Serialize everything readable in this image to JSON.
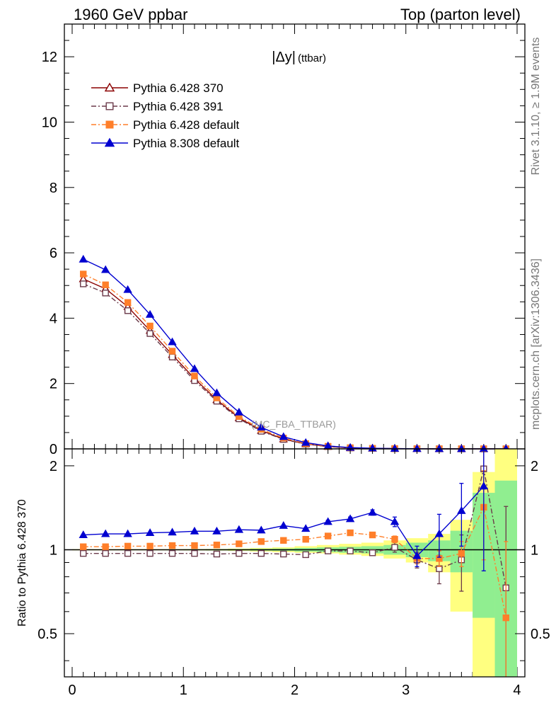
{
  "header": {
    "left": "1960 GeV ppbar",
    "right": "Top (parton level)"
  },
  "side_text": {
    "rivet": "Rivet 3.1.10, ≥ 1.9M events",
    "mcplots": "mcplots.cern.ch [arXiv:1306.3436]"
  },
  "chart_data": [
    {
      "type": "line",
      "title": "|Δy|",
      "title_suffix": "(ttbar)",
      "watermark": "(MC_FBA_TTBAR)",
      "xlim": [
        -0.07,
        4.07
      ],
      "ylim": [
        0,
        13.0
      ],
      "yticks": [
        0,
        2,
        4,
        6,
        8,
        10,
        12
      ],
      "ytick_labels": [
        "0",
        "2",
        "4",
        "6",
        "8",
        "10",
        "12"
      ],
      "x": [
        0.1,
        0.3,
        0.5,
        0.7,
        0.9,
        1.1,
        1.3,
        1.5,
        1.7,
        1.9,
        2.1,
        2.3,
        2.5,
        2.7,
        2.9,
        3.1,
        3.3,
        3.5,
        3.7,
        3.9
      ],
      "legend_position": "top-left",
      "series": [
        {
          "name": "Pythia 6.428 370",
          "color": "#8b0000",
          "marker": "open-triangle",
          "dash": "solid",
          "values": [
            5.2,
            4.9,
            4.35,
            3.62,
            2.88,
            2.15,
            1.5,
            0.95,
            0.56,
            0.3,
            0.15,
            0.07,
            0.03,
            0.015,
            0.008,
            0.004,
            0.002,
            0.001,
            0.001,
            0.001
          ]
        },
        {
          "name": "Pythia 6.428 391",
          "color": "#6b3a4a",
          "marker": "open-square",
          "dash": "dashdot",
          "values": [
            5.05,
            4.77,
            4.23,
            3.53,
            2.81,
            2.09,
            1.46,
            0.92,
            0.54,
            0.29,
            0.145,
            0.07,
            0.03,
            0.015,
            0.008,
            0.004,
            0.002,
            0.001,
            0.001,
            0.001
          ]
        },
        {
          "name": "Pythia 6.428 default",
          "color": "#ff7f2a",
          "marker": "filled-square",
          "dash": "dashdot",
          "values": [
            5.35,
            5.02,
            4.48,
            3.76,
            2.99,
            2.23,
            1.56,
            0.99,
            0.6,
            0.33,
            0.16,
            0.078,
            0.035,
            0.017,
            0.009,
            0.004,
            0.002,
            0.001,
            0.001,
            0.001
          ]
        },
        {
          "name": "Pythia 8.308 default",
          "color": "#0000d0",
          "marker": "filled-triangle",
          "dash": "solid",
          "values": [
            5.8,
            5.48,
            4.87,
            4.11,
            3.27,
            2.45,
            1.71,
            1.12,
            0.66,
            0.37,
            0.19,
            0.09,
            0.04,
            0.02,
            0.01,
            0.004,
            0.002,
            0.001,
            0.001,
            0.001
          ]
        }
      ]
    },
    {
      "type": "line",
      "ylabel": "Ratio to Pythia 6.428 370",
      "xlim": [
        -0.07,
        4.07
      ],
      "ylim": [
        0.35,
        2.3
      ],
      "yscale": "log",
      "xticks": [
        0,
        1,
        2,
        3,
        4
      ],
      "xtick_labels": [
        "0",
        "1",
        "2",
        "3",
        "4"
      ],
      "yticks": [
        0.5,
        1,
        2
      ],
      "ytick_labels": [
        "0.5",
        "1",
        "2"
      ],
      "reference_line": 1,
      "x": [
        0.1,
        0.3,
        0.5,
        0.7,
        0.9,
        1.1,
        1.3,
        1.5,
        1.7,
        1.9,
        2.1,
        2.3,
        2.5,
        2.7,
        2.9,
        3.1,
        3.3,
        3.5,
        3.7,
        3.9
      ],
      "bands": {
        "yellow_color": "#ffff80",
        "green_color": "#90ee90",
        "yellow": [
          [
            0.995,
            1.005
          ],
          [
            0.995,
            1.005
          ],
          [
            0.995,
            1.005
          ],
          [
            0.995,
            1.005
          ],
          [
            0.995,
            1.005
          ],
          [
            0.994,
            1.006
          ],
          [
            0.993,
            1.007
          ],
          [
            0.99,
            1.01
          ],
          [
            0.985,
            1.015
          ],
          [
            0.98,
            1.02
          ],
          [
            0.975,
            1.03
          ],
          [
            0.97,
            1.04
          ],
          [
            0.96,
            1.05
          ],
          [
            0.95,
            1.06
          ],
          [
            0.93,
            1.08
          ],
          [
            0.9,
            1.1
          ],
          [
            0.83,
            1.14
          ],
          [
            0.6,
            1.28
          ],
          [
            0.3,
            1.9
          ],
          [
            0.3,
            2.3
          ]
        ],
        "green": [
          [
            0.997,
            1.003
          ],
          [
            0.997,
            1.003
          ],
          [
            0.997,
            1.003
          ],
          [
            0.997,
            1.003
          ],
          [
            0.997,
            1.003
          ],
          [
            0.996,
            1.004
          ],
          [
            0.995,
            1.005
          ],
          [
            0.994,
            1.006
          ],
          [
            0.992,
            1.008
          ],
          [
            0.99,
            1.01
          ],
          [
            0.985,
            1.015
          ],
          [
            0.98,
            1.02
          ],
          [
            0.975,
            1.025
          ],
          [
            0.97,
            1.03
          ],
          [
            0.96,
            1.04
          ],
          [
            0.94,
            1.06
          ],
          [
            0.91,
            1.08
          ],
          [
            0.83,
            1.17
          ],
          [
            0.57,
            1.6
          ],
          [
            0.3,
            1.77
          ]
        ]
      },
      "series": [
        {
          "name": "Pythia 6.428 391",
          "values": [
            0.97,
            0.97,
            0.97,
            0.97,
            0.97,
            0.97,
            0.965,
            0.97,
            0.97,
            0.965,
            0.96,
            0.99,
            0.99,
            0.975,
            1.02,
            0.92,
            0.855,
            0.92,
            1.95,
            0.73
          ],
          "err": [
            0.005,
            0.005,
            0.005,
            0.005,
            0.005,
            0.005,
            0.005,
            0.005,
            0.005,
            0.005,
            0.005,
            0.01,
            0.01,
            0.01,
            0.04,
            0.06,
            0.1,
            0.21,
            0.3,
            0.7
          ]
        },
        {
          "name": "Pythia 6.428 default",
          "values": [
            1.025,
            1.025,
            1.03,
            1.03,
            1.035,
            1.035,
            1.04,
            1.05,
            1.07,
            1.08,
            1.09,
            1.12,
            1.15,
            1.13,
            1.09,
            0.93,
            0.93,
            0.97,
            1.42,
            0.57
          ],
          "err": [
            0.005,
            0.005,
            0.005,
            0.005,
            0.005,
            0.005,
            0.005,
            0.005,
            0.005,
            0.005,
            0.01,
            0.01,
            0.01,
            0.02,
            0.03,
            0.04,
            0.06,
            0.1,
            0.5,
            0.5
          ]
        },
        {
          "name": "Pythia 8.308 default",
          "values": [
            1.13,
            1.14,
            1.14,
            1.15,
            1.155,
            1.165,
            1.165,
            1.18,
            1.175,
            1.22,
            1.19,
            1.26,
            1.29,
            1.36,
            1.26,
            0.95,
            1.14,
            1.38,
            1.69,
            null
          ],
          "err": [
            0.005,
            0.005,
            0.005,
            0.005,
            0.005,
            0.005,
            0.005,
            0.005,
            0.005,
            0.005,
            0.01,
            0.015,
            0.02,
            0.03,
            0.05,
            0.08,
            0.2,
            0.35,
            0.85,
            null
          ]
        }
      ]
    }
  ]
}
